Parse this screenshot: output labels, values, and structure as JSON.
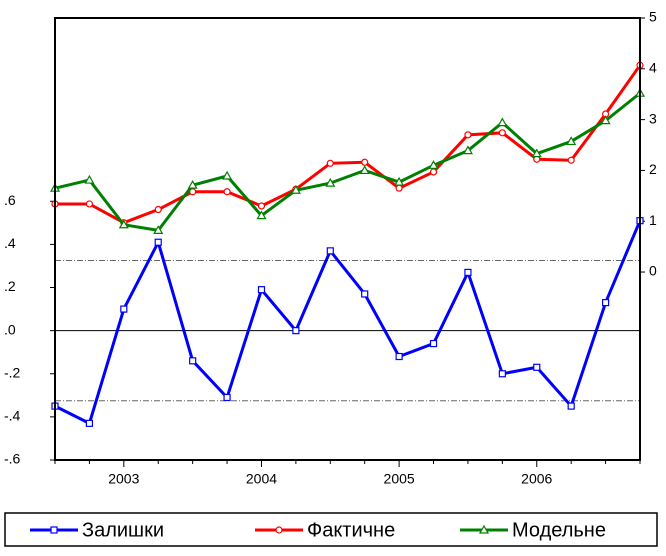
{
  "chart_data": {
    "type": "line",
    "categories": [
      null,
      null,
      "2003",
      null,
      null,
      null,
      "2004",
      null,
      null,
      null,
      "2005",
      null,
      null,
      null,
      "2006",
      null,
      null,
      null
    ],
    "series": [
      {
        "name": "Залишки",
        "color": "#0000ff",
        "marker": "square",
        "axis": "y",
        "values": [
          -0.35,
          -0.43,
          0.1,
          0.41,
          -0.14,
          -0.31,
          0.19,
          0.0,
          0.37,
          0.17,
          -0.12,
          -0.06,
          0.27,
          -0.2,
          -0.17,
          -0.35,
          0.13,
          0.51
        ]
      },
      {
        "name": "Фактичне",
        "color": "#ff0000",
        "marker": "circle",
        "axis": "y2",
        "values": [
          1.34,
          1.34,
          0.97,
          1.23,
          1.58,
          1.58,
          1.3,
          1.63,
          2.14,
          2.16,
          1.65,
          1.97,
          2.7,
          2.74,
          2.22,
          2.2,
          3.11,
          4.07
        ]
      },
      {
        "name": "Модельне",
        "color": "#008000",
        "marker": "triangle",
        "axis": "y2",
        "values": [
          1.65,
          1.81,
          0.93,
          0.82,
          1.71,
          1.89,
          1.11,
          1.61,
          1.75,
          2.0,
          1.77,
          2.1,
          2.39,
          2.94,
          2.33,
          2.57,
          2.98,
          3.52
        ]
      }
    ],
    "ylim": [
      -0.6,
      1.45
    ],
    "yticks": [
      {
        "value": -0.6,
        "label": "-.6"
      },
      {
        "value": -0.4,
        "label": "-.4"
      },
      {
        "value": -0.2,
        "label": "-.2"
      },
      {
        "value": 0,
        "label": ".0"
      },
      {
        "value": 0.2,
        "label": ".2"
      },
      {
        "value": 0.4,
        "label": ".4"
      },
      {
        "value": 0.6,
        "label": ".6"
      }
    ],
    "y2lim": [
      -3.7,
      5.0
    ],
    "y2ticks": [
      0,
      1,
      2,
      3,
      4,
      5
    ],
    "zero_line": 0,
    "ref_lines": [
      0.325,
      -0.325
    ],
    "legend": "bottom"
  }
}
